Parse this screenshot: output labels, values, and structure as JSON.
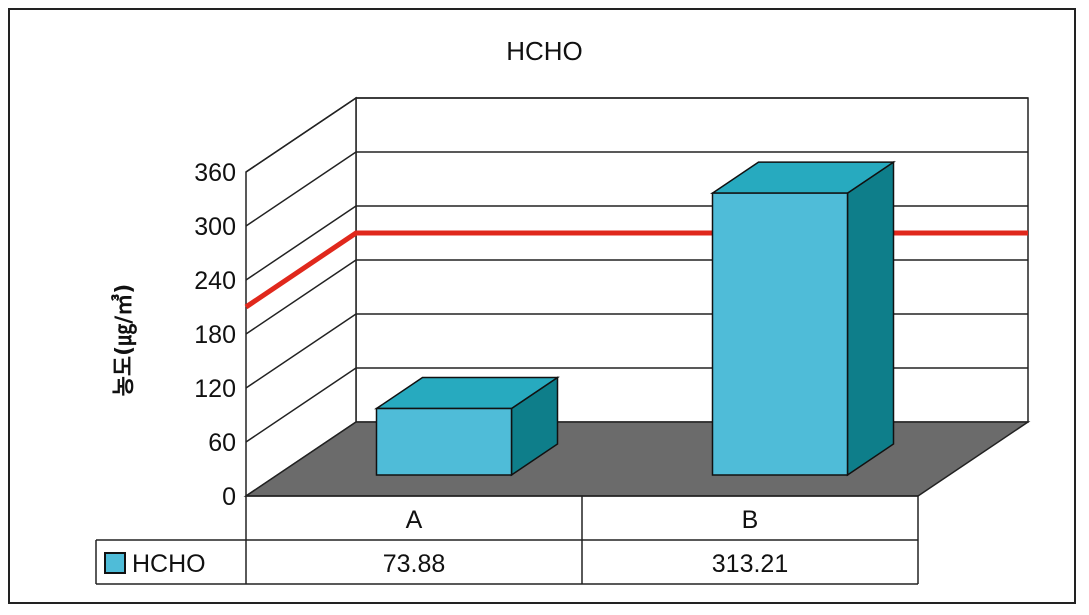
{
  "colors": {
    "bar_front": "#4fbcd8",
    "bar_top": "#27aabf",
    "bar_side": "#0e7e8a",
    "floor": "#6b6b6b",
    "reference_line": "#e0281c"
  },
  "chart_data": {
    "type": "bar",
    "title": "HCHO",
    "ylabel": "농도(㎍/㎥)",
    "xlabel": "",
    "categories": [
      "A",
      "B"
    ],
    "series": [
      {
        "name": "HCHO",
        "values": [
          73.88,
          313.21
        ]
      }
    ],
    "ylim": [
      0,
      360
    ],
    "yticks": [
      "0",
      "60",
      "120",
      "180",
      "240",
      "300",
      "360"
    ],
    "reference_line": {
      "value": 210
    },
    "grid": true,
    "data_table": true,
    "style": "3d"
  }
}
